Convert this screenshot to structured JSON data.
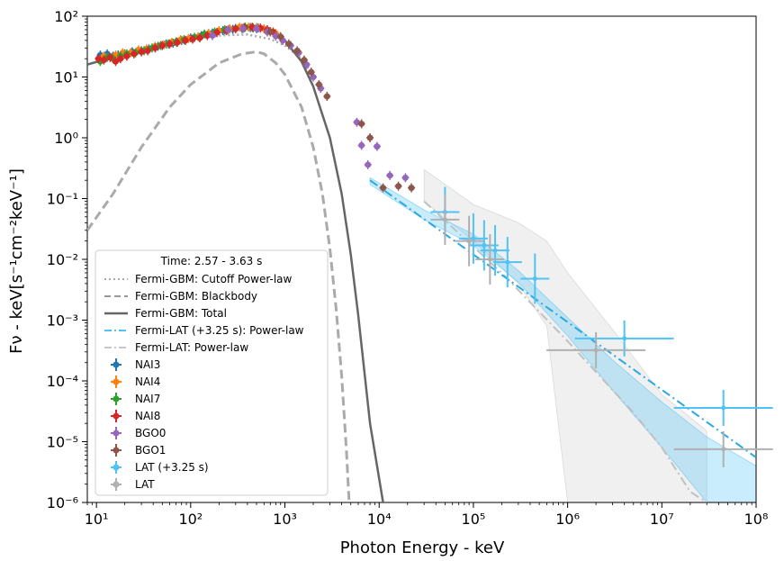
{
  "chart_data": {
    "type": "scatter",
    "xscale": "log",
    "yscale": "log",
    "xlim": [
      8,
      100000000
    ],
    "ylim": [
      1e-06,
      100
    ],
    "xlabel": "Photon Energy - keV",
    "ylabel": "Fν - keV[s⁻¹cm⁻²keV⁻¹]",
    "x_ticks": [
      {
        "v": 10,
        "label": "10¹"
      },
      {
        "v": 100,
        "label": "10²"
      },
      {
        "v": 1000,
        "label": "10³"
      },
      {
        "v": 10000,
        "label": "10⁴"
      },
      {
        "v": 100000,
        "label": "10⁵"
      },
      {
        "v": 1000000,
        "label": "10⁶"
      },
      {
        "v": 10000000,
        "label": "10⁷"
      },
      {
        "v": 100000000,
        "label": "10⁸"
      }
    ],
    "y_ticks": [
      {
        "v": 1e-06,
        "label": "10⁻⁶"
      },
      {
        "v": 1e-05,
        "label": "10⁻⁵"
      },
      {
        "v": 0.0001,
        "label": "10⁻⁴"
      },
      {
        "v": 0.001,
        "label": "10⁻³"
      },
      {
        "v": 0.01,
        "label": "10⁻²"
      },
      {
        "v": 0.1,
        "label": "10⁻¹"
      },
      {
        "v": 1,
        "label": "10⁰"
      },
      {
        "v": 10,
        "label": "10¹"
      },
      {
        "v": 100,
        "label": "10²"
      }
    ],
    "legend": {
      "title": "Time: 2.57 - 3.63 s",
      "placement": "lower-left",
      "entries": [
        {
          "label": "Fermi-GBM: Cutoff Power-law",
          "style": "dotted",
          "color": "#aaaaaa"
        },
        {
          "label": "Fermi-GBM: Blackbody",
          "style": "dashed",
          "color": "#999999"
        },
        {
          "label": "Fermi-GBM: Total",
          "style": "solid",
          "color": "#666666"
        },
        {
          "label": "Fermi-LAT (+3.25 s): Power-law",
          "style": "dashdot",
          "color": "#4fc3f7"
        },
        {
          "label": "Fermi-LAT: Power-law",
          "style": "dashdot",
          "color": "#c8c8c8"
        },
        {
          "label": "NAI3",
          "style": "marker",
          "color": "#1f77b4"
        },
        {
          "label": "NAI4",
          "style": "marker",
          "color": "#ff7f0e"
        },
        {
          "label": "NAI7",
          "style": "marker",
          "color": "#2ca02c"
        },
        {
          "label": "NAI8",
          "style": "marker",
          "color": "#d62728"
        },
        {
          "label": "BGO0",
          "style": "marker",
          "color": "#9467bd"
        },
        {
          "label": "BGO1",
          "style": "marker",
          "color": "#8c564b"
        },
        {
          "label": "LAT (+3.25 s)",
          "style": "marker",
          "color": "#4fc3f7"
        },
        {
          "label": "LAT",
          "style": "marker",
          "color": "#b0b0b0"
        }
      ]
    },
    "models": {
      "cutoff_powerlaw": [
        [
          8,
          16
        ],
        [
          20,
          24
        ],
        [
          50,
          33
        ],
        [
          100,
          40
        ],
        [
          200,
          48
        ],
        [
          400,
          50
        ],
        [
          700,
          42
        ],
        [
          1000,
          33
        ],
        [
          1500,
          20
        ],
        [
          2000,
          11
        ]
      ],
      "blackbody": [
        [
          8,
          0.03
        ],
        [
          15,
          0.12
        ],
        [
          30,
          0.7
        ],
        [
          60,
          3.2
        ],
        [
          100,
          7.5
        ],
        [
          200,
          17
        ],
        [
          350,
          24
        ],
        [
          500,
          26
        ],
        [
          600,
          24
        ],
        [
          800,
          17
        ],
        [
          1000,
          11
        ],
        [
          1500,
          3.2
        ],
        [
          2000,
          0.7
        ],
        [
          2500,
          0.12
        ],
        [
          3000,
          0.015
        ],
        [
          3500,
          0.0015
        ],
        [
          4000,
          0.00012
        ],
        [
          4500,
          7e-06
        ],
        [
          4800,
          1e-06
        ]
      ],
      "gbm_total": [
        [
          8,
          16
        ],
        [
          20,
          24
        ],
        [
          50,
          34
        ],
        [
          100,
          44
        ],
        [
          200,
          58
        ],
        [
          350,
          68
        ],
        [
          500,
          69
        ],
        [
          700,
          60
        ],
        [
          1000,
          40
        ],
        [
          1500,
          18
        ],
        [
          2000,
          7
        ],
        [
          3000,
          1.0
        ],
        [
          4000,
          0.12
        ],
        [
          5000,
          0.012
        ],
        [
          6000,
          0.0012
        ],
        [
          8000,
          2e-05
        ],
        [
          11000,
          1e-06
        ]
      ],
      "lat_powerlaw_shifted": [
        [
          8000,
          0.2
        ],
        [
          100000000,
          5.5e-06
        ]
      ],
      "lat_powerlaw": [
        [
          30000,
          0.09
        ],
        [
          200000,
          0.006
        ],
        [
          1000000,
          0.00045
        ],
        [
          5000000,
          3e-05
        ],
        [
          10000000,
          8e-06
        ],
        [
          20000000,
          1.5e-06
        ],
        [
          30000000,
          1e-06
        ]
      ]
    },
    "bands": {
      "lat_shifted_band": [
        [
          8000,
          0.22,
          0.17
        ],
        [
          30000,
          0.065,
          0.045
        ],
        [
          100000,
          0.026,
          0.017
        ],
        [
          300000,
          0.0065,
          0.0042
        ],
        [
          1000000,
          0.0011,
          0.00055
        ],
        [
          3000000,
          0.00022,
          7e-05
        ],
        [
          10000000,
          4.5e-05,
          8e-06
        ],
        [
          30000000,
          1.2e-05,
          1e-06
        ],
        [
          100000000,
          4e-06,
          1e-06
        ]
      ],
      "lat_band": [
        [
          30000,
          0.3,
          0.09
        ],
        [
          100000,
          0.08,
          0.02
        ],
        [
          300000,
          0.04,
          0.004
        ],
        [
          600000,
          0.02,
          0.0008
        ],
        [
          1000000,
          0.006,
          1e-06
        ],
        [
          3000000,
          0.0007,
          1e-06
        ],
        [
          10000000,
          6e-05,
          1e-06
        ],
        [
          30000000,
          1.5e-05,
          1e-06
        ]
      ]
    },
    "series": [
      {
        "name": "NAI3",
        "color": "#1f77b4",
        "points": [
          [
            11,
            23
          ],
          [
            13,
            24
          ],
          [
            15,
            22
          ],
          [
            17,
            23
          ],
          [
            20,
            24
          ],
          [
            24,
            26
          ],
          [
            30,
            27
          ],
          [
            36,
            29
          ],
          [
            45,
            32
          ],
          [
            55,
            35
          ],
          [
            65,
            36
          ],
          [
            80,
            40
          ],
          [
            100,
            44
          ],
          [
            130,
            48
          ],
          [
            170,
            53
          ],
          [
            220,
            58
          ],
          [
            280,
            61
          ],
          [
            350,
            63
          ],
          [
            430,
            65
          ],
          [
            520,
            64
          ]
        ]
      },
      {
        "name": "NAI4",
        "color": "#ff7f0e",
        "points": [
          [
            12,
            22
          ],
          [
            14,
            21
          ],
          [
            16,
            23
          ],
          [
            19,
            25
          ],
          [
            23,
            25
          ],
          [
            28,
            28
          ],
          [
            34,
            29
          ],
          [
            42,
            32
          ],
          [
            52,
            34
          ],
          [
            63,
            37
          ],
          [
            78,
            41
          ],
          [
            95,
            43
          ],
          [
            120,
            46
          ],
          [
            155,
            52
          ],
          [
            200,
            58
          ],
          [
            260,
            62
          ],
          [
            330,
            66
          ],
          [
            410,
            66
          ],
          [
            500,
            65
          ],
          [
            600,
            62
          ],
          [
            700,
            56
          ],
          [
            800,
            52
          ]
        ]
      },
      {
        "name": "NAI7",
        "color": "#2ca02c",
        "points": [
          [
            11,
            18
          ],
          [
            13,
            21
          ],
          [
            15,
            20
          ],
          [
            18,
            22
          ],
          [
            21,
            24
          ],
          [
            26,
            25
          ],
          [
            32,
            27
          ],
          [
            39,
            30
          ],
          [
            48,
            33
          ],
          [
            58,
            35
          ],
          [
            70,
            38
          ],
          [
            85,
            41
          ],
          [
            110,
            45
          ],
          [
            140,
            51
          ],
          [
            180,
            55
          ],
          [
            230,
            60
          ],
          [
            300,
            63
          ],
          [
            380,
            66
          ],
          [
            460,
            64
          ]
        ]
      },
      {
        "name": "NAI8",
        "color": "#d62728",
        "points": [
          [
            10.5,
            20
          ],
          [
            12,
            19
          ],
          [
            14,
            21
          ],
          [
            16,
            18
          ],
          [
            18,
            20
          ],
          [
            21,
            22
          ],
          [
            25,
            24
          ],
          [
            30,
            26
          ],
          [
            35,
            27
          ],
          [
            42,
            30
          ],
          [
            50,
            33
          ],
          [
            60,
            35
          ],
          [
            72,
            37
          ],
          [
            88,
            40
          ],
          [
            105,
            42
          ],
          [
            125,
            44
          ],
          [
            150,
            48
          ],
          [
            190,
            54
          ],
          [
            240,
            58
          ],
          [
            300,
            62
          ],
          [
            370,
            65
          ],
          [
            450,
            66
          ],
          [
            550,
            64
          ],
          [
            650,
            60
          ],
          [
            750,
            55
          ]
        ]
      },
      {
        "name": "BGO0",
        "color": "#9467bd",
        "points": [
          [
            170,
            48
          ],
          [
            250,
            60
          ],
          [
            360,
            63
          ],
          [
            500,
            62
          ],
          [
            650,
            55
          ],
          [
            800,
            47
          ],
          [
            950,
            40
          ],
          [
            1150,
            33
          ],
          [
            1400,
            25
          ],
          [
            1700,
            16
          ],
          [
            2000,
            10
          ],
          [
            2400,
            6.5
          ],
          [
            5800,
            1.8
          ],
          [
            6500,
            0.75
          ],
          [
            7600,
            0.36
          ],
          [
            9500,
            0.72
          ],
          [
            13000,
            0.24
          ],
          [
            19000,
            0.22
          ]
        ]
      },
      {
        "name": "BGO1",
        "color": "#8c564b",
        "points": [
          [
            700,
            55
          ],
          [
            900,
            46
          ],
          [
            1100,
            35
          ],
          [
            1350,
            27
          ],
          [
            1600,
            19
          ],
          [
            1900,
            12
          ],
          [
            2300,
            7.5
          ],
          [
            2800,
            4.8
          ],
          [
            6500,
            1.7
          ],
          [
            8000,
            1.0
          ],
          [
            11000,
            0.15
          ],
          [
            16000,
            0.16
          ],
          [
            22000,
            0.15
          ]
        ]
      },
      {
        "name": "LAT (+3.25 s)",
        "color": "#4fc3f7",
        "points": [
          [
            50000,
            0.06
          ],
          [
            100000,
            0.022
          ],
          [
            130000,
            0.017
          ],
          [
            170000,
            0.014
          ],
          [
            230000,
            0.009
          ],
          [
            450000,
            0.0048
          ],
          [
            4000000,
            0.0005
          ],
          [
            45000000,
            3.6e-05
          ]
        ]
      },
      {
        "name": "LAT",
        "color": "#b0b0b0",
        "points": [
          [
            50000,
            0.045
          ],
          [
            90000,
            0.02
          ],
          [
            150000,
            0.01
          ],
          [
            2000000,
            0.00032
          ],
          [
            45000000,
            7.5e-06
          ]
        ]
      }
    ]
  }
}
